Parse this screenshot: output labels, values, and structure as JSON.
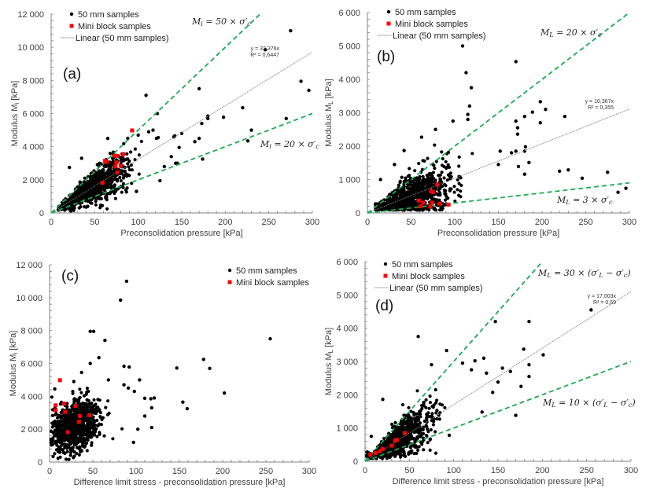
{
  "chart_data": [
    {
      "id": "a",
      "type": "scatter",
      "panel_label": "(a)",
      "xlabel": "Preconsolidation pressure [kPa]",
      "ylabel": "Modulus Mi [kPa]",
      "xlim": [
        0,
        300
      ],
      "ylim": [
        0,
        12000
      ],
      "xticks": [
        0,
        50,
        100,
        150,
        200,
        250,
        300
      ],
      "yticks": [
        0,
        2000,
        4000,
        6000,
        8000,
        10000,
        12000
      ],
      "ytick_labels": [
        "0",
        "2 000",
        "4 000",
        "6 000",
        "8 000",
        "10 000",
        "12 000"
      ],
      "legend": [
        "50 mm samples",
        "Mini block samples",
        "Linear (50 mm samples)"
      ],
      "legend_position": "top-left",
      "trendline": {
        "slope": 32.376,
        "label1": "y = 32,376x",
        "label2": "R² = 0,6447",
        "xmax": 300
      },
      "guide_lines": [
        {
          "slope": 50,
          "xmax": 240,
          "label": "Mi = 50 × σ'c"
        },
        {
          "slope": 20,
          "xmax": 300,
          "label": "Mi = 20 × σ'c"
        }
      ],
      "cluster": {
        "count": 900,
        "x_mean": 45,
        "x_sd": 22,
        "x_min": 8,
        "x_max": 130,
        "slope": 32,
        "rel_sd": 0.28
      },
      "series": [
        {
          "name": "50 mm samples",
          "points": [
            [
              246,
              9850
            ],
            [
              275,
              11000
            ],
            [
              287,
              7950
            ],
            [
              296,
              7400
            ],
            [
              270,
              5700
            ],
            [
              230,
              5000
            ],
            [
              226,
              4350
            ],
            [
              220,
              6350
            ],
            [
              198,
              5780
            ],
            [
              180,
              5700
            ],
            [
              180,
              5850
            ],
            [
              173,
              5400
            ],
            [
              174,
              3250
            ],
            [
              170,
              7500
            ],
            [
              170,
              4500
            ],
            [
              165,
              4300
            ],
            [
              150,
              4800
            ],
            [
              147,
              3950
            ],
            [
              141,
              4600
            ],
            [
              142,
              4650
            ],
            [
              145,
              3000
            ],
            [
              143,
              3000
            ],
            [
              138,
              3400
            ],
            [
              109,
              7100
            ],
            [
              122,
              6000
            ],
            [
              112,
              4900
            ],
            [
              117,
              5000
            ],
            [
              121,
              4500
            ],
            [
              123,
              4550
            ],
            [
              88,
              4500
            ],
            [
              65,
              4500
            ],
            [
              35,
              3300
            ],
            [
              21,
              2750
            ],
            [
              98,
              1300
            ],
            [
              42,
              400
            ],
            [
              100,
              4700
            ],
            [
              130,
              2800
            ],
            [
              125,
              1950
            ]
          ]
        },
        {
          "name": "Mini block samples",
          "points": [
            [
              93,
              4980
            ],
            [
              83,
              3550
            ],
            [
              73,
              3450
            ],
            [
              76,
              3450
            ],
            [
              62,
              3150
            ],
            [
              64,
              3080
            ],
            [
              75,
              3050
            ],
            [
              80,
              2850
            ],
            [
              74,
              2800
            ],
            [
              76,
              2450
            ],
            [
              59,
              1820
            ]
          ]
        }
      ]
    },
    {
      "id": "b",
      "type": "scatter",
      "panel_label": "(b)",
      "xlabel": "Preconsolidation pressure [kPa]",
      "ylabel": "Modulus ML [kPa]",
      "xlim": [
        0,
        300
      ],
      "ylim": [
        0,
        6000
      ],
      "xticks": [
        0,
        50,
        100,
        150,
        200,
        250,
        300
      ],
      "yticks": [
        0,
        1000,
        2000,
        3000,
        4000,
        5000,
        6000
      ],
      "ytick_labels": [
        "0",
        "1 000",
        "2 000",
        "3 000",
        "4 000",
        "5 000",
        "6 000"
      ],
      "legend": [
        "50 mm samples",
        "Mini block samples",
        "Linear (50 mm samples)"
      ],
      "legend_position": "top-left",
      "trendline": {
        "slope": 10.367,
        "label1": "y = 10,367x",
        "label2": "R² = 0,355",
        "xmax": 300
      },
      "guide_lines": [
        {
          "slope": 20,
          "xmax": 300,
          "label": "ML = 20 × σ'c"
        },
        {
          "slope": 3,
          "xmax": 300,
          "label": "ML = 3 × σ'c"
        }
      ],
      "cluster": {
        "count": 900,
        "x_mean": 48,
        "x_sd": 24,
        "x_min": 8,
        "x_max": 150,
        "slope": 9,
        "rel_sd": 0.65
      },
      "series": [
        {
          "name": "50 mm samples",
          "points": [
            [
              109,
              5000
            ],
            [
              170,
              4530
            ],
            [
              113,
              4200
            ],
            [
              119,
              3750
            ],
            [
              117,
              3200
            ],
            [
              115,
              2950
            ],
            [
              115,
              2800
            ],
            [
              198,
              3330
            ],
            [
              204,
              3100
            ],
            [
              189,
              3020
            ],
            [
              226,
              2890
            ],
            [
              180,
              2890
            ],
            [
              170,
              2750
            ],
            [
              198,
              2700
            ],
            [
              172,
              2550
            ],
            [
              172,
              2360
            ],
            [
              181,
              1980
            ],
            [
              180,
              1850
            ],
            [
              170,
              1850
            ],
            [
              165,
              1800
            ],
            [
              173,
              1390
            ],
            [
              185,
              1510
            ],
            [
              180,
              1160
            ],
            [
              220,
              1250
            ],
            [
              230,
              1290
            ],
            [
              246,
              1040
            ],
            [
              275,
              1220
            ],
            [
              287,
              620
            ],
            [
              296,
              740
            ],
            [
              150,
              1450
            ],
            [
              152,
              1850
            ],
            [
              62,
              2270
            ],
            [
              42,
              1870
            ],
            [
              31,
              1450
            ],
            [
              15,
              1000
            ],
            [
              98,
              2750
            ],
            [
              78,
              2500
            ]
          ]
        },
        {
          "name": "Mini block samples",
          "points": [
            [
              80,
              850
            ],
            [
              73,
              650
            ],
            [
              75,
              620
            ],
            [
              59,
              370
            ],
            [
              64,
              310
            ],
            [
              74,
              310
            ],
            [
              83,
              280
            ],
            [
              93,
              250
            ],
            [
              61,
              200
            ],
            [
              72,
              190
            ]
          ]
        }
      ]
    },
    {
      "id": "c",
      "type": "scatter",
      "panel_label": "(c)",
      "xlabel": "Difference limit stress - preconsolidation pressure [kPa]",
      "ylabel": "Modulus Mi [kPa]",
      "xlim": [
        0,
        300
      ],
      "ylim": [
        0,
        12000
      ],
      "xticks": [
        0,
        50,
        100,
        150,
        200,
        250,
        300
      ],
      "yticks": [
        0,
        2000,
        4000,
        6000,
        8000,
        10000,
        12000
      ],
      "ytick_labels": [
        "0",
        "2 000",
        "4 000",
        "6 000",
        "8 000",
        "10 000",
        "12 000"
      ],
      "legend": [
        "50 mm samples",
        "Mini block samples"
      ],
      "legend_position": "top-right",
      "cluster": {
        "count": 900,
        "x_mean": 28,
        "x_sd": 15,
        "x_min": 1,
        "x_max": 100,
        "base": 1800,
        "slope": 12,
        "abs_sd": 750
      },
      "series": [
        {
          "name": "50 mm samples",
          "points": [
            [
              89,
              11000
            ],
            [
              82,
              9850
            ],
            [
              47,
              7950
            ],
            [
              51,
              7950
            ],
            [
              64,
              7400
            ],
            [
              255,
              7500
            ],
            [
              178,
              6250
            ],
            [
              185,
              5700
            ],
            [
              147,
              5720
            ],
            [
              57,
              6350
            ],
            [
              47,
              6000
            ],
            [
              86,
              5830
            ],
            [
              92,
              5780
            ],
            [
              37,
              5450
            ],
            [
              202,
              4200
            ],
            [
              154,
              3650
            ],
            [
              159,
              3250
            ],
            [
              104,
              5000
            ],
            [
              68,
              5000
            ],
            [
              86,
              4700
            ],
            [
              91,
              4500
            ],
            [
              98,
              4300
            ],
            [
              121,
              3900
            ],
            [
              110,
              3880
            ],
            [
              117,
              3850
            ],
            [
              118,
              3300
            ],
            [
              110,
              2800
            ],
            [
              118,
              2100
            ],
            [
              102,
              2000
            ],
            [
              97,
              1200
            ],
            [
              6,
              4450
            ],
            [
              28,
              4900
            ]
          ]
        },
        {
          "name": "Mini block samples",
          "points": [
            [
              12,
              4980
            ],
            [
              7,
              3450
            ],
            [
              30,
              3420
            ],
            [
              17,
              3550
            ],
            [
              7,
              3150
            ],
            [
              18,
              3050
            ],
            [
              35,
              2800
            ],
            [
              46,
              2850
            ],
            [
              34,
              2450
            ],
            [
              21,
              1820
            ]
          ]
        }
      ]
    },
    {
      "id": "d",
      "type": "scatter",
      "panel_label": "(d)",
      "xlabel": "Difference limit stress - preconsolidation pressure [kPa]",
      "ylabel": "Modulus ML [kPa]",
      "xlim": [
        0,
        300
      ],
      "ylim": [
        0,
        6000
      ],
      "xticks": [
        0,
        50,
        100,
        150,
        200,
        250,
        300
      ],
      "yticks": [
        0,
        1000,
        2000,
        3000,
        4000,
        5000,
        6000
      ],
      "ytick_labels": [
        "0",
        "1 000",
        "2 000",
        "3 000",
        "4 000",
        "5 000",
        "6 000"
      ],
      "legend": [
        "50 mm samples",
        "Mini block samples",
        "Linear (50 mm samples)"
      ],
      "legend_position": "top-left",
      "trendline": {
        "slope": 17.003,
        "label1": "y = 17,003x",
        "label2": "R² = 0,69",
        "xmax": 300
      },
      "guide_lines": [
        {
          "slope": 30,
          "xmax": 200,
          "label": "ML = 30 × (σ'L − σ'c)"
        },
        {
          "slope": 10,
          "xmax": 300,
          "label": "ML = 10 × (σ'L − σ'c)"
        }
      ],
      "cluster": {
        "count": 900,
        "x_mean": 35,
        "x_sd": 20,
        "x_min": 1,
        "x_max": 130,
        "slope": 17,
        "rel_sd": 0.38
      },
      "series": [
        {
          "name": "50 mm samples",
          "points": [
            [
              255,
              4550
            ],
            [
              147,
              4200
            ],
            [
              185,
              4200
            ],
            [
              60,
              3750
            ],
            [
              92,
              3330
            ],
            [
              179,
              3370
            ],
            [
              201,
              3200
            ],
            [
              134,
              3100
            ],
            [
              124,
              3020
            ],
            [
              75,
              2900
            ],
            [
              185,
              2900
            ],
            [
              110,
              2950
            ],
            [
              155,
              2800
            ],
            [
              164,
              2700
            ],
            [
              137,
              2650
            ],
            [
              120,
              2750
            ],
            [
              185,
              2550
            ],
            [
              150,
              2380
            ],
            [
              176,
              2250
            ],
            [
              144,
              2070
            ],
            [
              170,
              1380
            ],
            [
              132,
              1480
            ],
            [
              20,
              1860
            ],
            [
              7,
              750
            ],
            [
              95,
              780
            ]
          ]
        },
        {
          "name": "Mini block samples",
          "points": [
            [
              45,
              850
            ],
            [
              36,
              650
            ],
            [
              34,
              620
            ],
            [
              30,
              470
            ],
            [
              20,
              370
            ],
            [
              17,
              310
            ],
            [
              12,
              250
            ],
            [
              6,
              200
            ]
          ]
        }
      ]
    }
  ],
  "annotation_labels": {
    "a_upper": {
      "main": "M",
      "sub": "i",
      "rest": " = 50 × σ′",
      "sub2": "c"
    },
    "a_lower": {
      "main": "M",
      "sub": "i",
      "rest": " = 20 × σ′",
      "sub2": "c"
    },
    "b_upper": {
      "main": "M",
      "sub": "L",
      "rest": " = 20 × σ′",
      "sub2": "c"
    },
    "b_lower": {
      "main": "M",
      "sub": "L",
      "rest": " = 3 × σ′",
      "sub2": "c"
    },
    "d_upper": {
      "main": "M",
      "sub": "L",
      "rest": " = 30 × (σ′",
      "sub2": "L",
      "rest2": " − σ′",
      "sub3": "c",
      "end": ")"
    },
    "d_lower": {
      "main": "M",
      "sub": "L",
      "rest": " = 10 × (σ′",
      "sub2": "L",
      "rest2": " − σ′",
      "sub3": "c",
      "end": ")"
    }
  },
  "colors": {
    "black_points": "#000000",
    "mini_block": "#ff0000",
    "guide_line": "#1aaa55",
    "trend_line": "#808080",
    "axis": "#808080"
  }
}
